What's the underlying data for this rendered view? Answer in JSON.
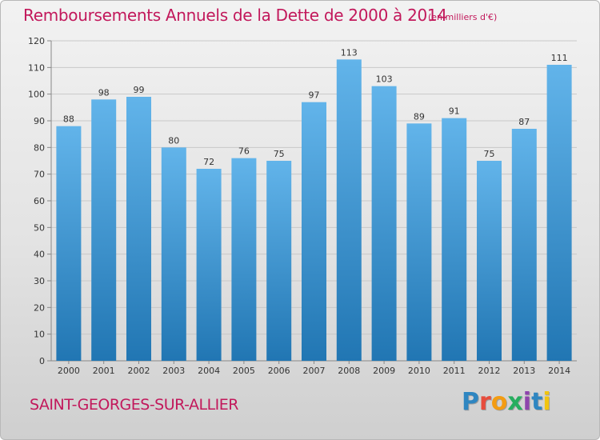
{
  "title": "Remboursements Annuels de la Dette de 2000 à 2014",
  "unit": "(en milliers d'€)",
  "commune": "SAINT-GEORGES-SUR-ALLIER",
  "logo": {
    "letters": [
      "P",
      "r",
      "o",
      "x",
      "i",
      "t",
      "i"
    ],
    "colors": [
      "#2e86c1",
      "#e74c3c",
      "#f39c12",
      "#27ae60",
      "#8e44ad",
      "#2e86c1",
      "#f1c40f"
    ]
  },
  "colors": {
    "accent": "#c2185b",
    "bar_light": "#62b4ea",
    "bar_dark": "#2176b3",
    "grid": "#c8c8c8"
  },
  "chart_data": {
    "type": "bar",
    "title": "Remboursements Annuels de la Dette de 2000 à 2014",
    "categories": [
      "2000",
      "2001",
      "2002",
      "2003",
      "2004",
      "2005",
      "2006",
      "2007",
      "2008",
      "2009",
      "2010",
      "2011",
      "2012",
      "2013",
      "2014"
    ],
    "values": [
      88,
      98,
      99,
      80,
      72,
      76,
      75,
      97,
      113,
      103,
      89,
      91,
      75,
      87,
      111
    ],
    "y_ticks": [
      0,
      10,
      20,
      30,
      40,
      50,
      60,
      70,
      80,
      90,
      100,
      110,
      120
    ],
    "ylim": [
      0,
      120
    ],
    "grid": true,
    "legend": "none"
  }
}
